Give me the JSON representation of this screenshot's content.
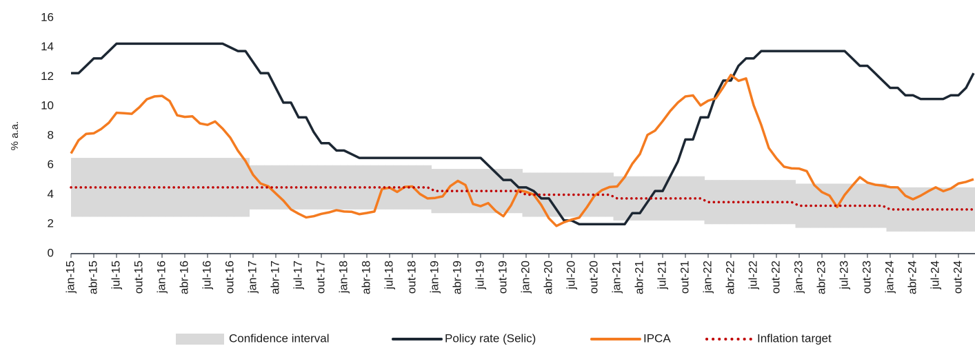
{
  "chart_data": {
    "type": "line",
    "y_label": "% a.a.",
    "categories": [
      "jan-15",
      null,
      null,
      "abr-15",
      null,
      null,
      "jul-15",
      null,
      null,
      "out-15",
      null,
      null,
      "jan-16",
      null,
      null,
      "abr-16",
      null,
      null,
      "jul-16",
      null,
      null,
      "out-16",
      null,
      null,
      "jan-17",
      null,
      null,
      "abr-17",
      null,
      null,
      "jul-17",
      null,
      null,
      "out-17",
      null,
      null,
      "jan-18",
      null,
      null,
      "abr-18",
      null,
      null,
      "jul-18",
      null,
      null,
      "out-18",
      null,
      null,
      "jan-19",
      null,
      null,
      "abr-19",
      null,
      null,
      "jul-19",
      null,
      null,
      "out-19",
      null,
      null,
      "jan-20",
      null,
      null,
      "abr-20",
      null,
      null,
      "jul-20",
      null,
      null,
      "out-20",
      null,
      null,
      "jan-21",
      null,
      null,
      "abr-21",
      null,
      null,
      "jul-21",
      null,
      null,
      "out-21",
      null,
      null,
      "jan-22",
      null,
      null,
      "abr-22",
      null,
      null,
      "jul-22",
      null,
      null,
      "out-22",
      null,
      null,
      "jan-23",
      null,
      null,
      "abr-23",
      null,
      null,
      "jul-23",
      null,
      null,
      "out-23",
      null,
      null,
      "jan-24",
      null,
      null,
      "abr-24",
      null,
      null,
      "jul-24",
      null,
      null,
      "out-24",
      null,
      null
    ],
    "band": {
      "name": "Confidence interval",
      "color": "#d9d9d9",
      "lower": [
        2.5,
        2.5,
        2.5,
        2.5,
        2.5,
        2.5,
        2.5,
        2.5,
        2.5,
        2.5,
        2.5,
        2.5,
        2.5,
        2.5,
        2.5,
        2.5,
        2.5,
        2.5,
        2.5,
        2.5,
        2.5,
        2.5,
        2.5,
        2.5,
        3,
        3,
        3,
        3,
        3,
        3,
        3,
        3,
        3,
        3,
        3,
        3,
        3,
        3,
        3,
        3,
        3,
        3,
        3,
        3,
        3,
        3,
        3,
        3,
        2.75,
        2.75,
        2.75,
        2.75,
        2.75,
        2.75,
        2.75,
        2.75,
        2.75,
        2.75,
        2.75,
        2.75,
        2.5,
        2.5,
        2.5,
        2.5,
        2.5,
        2.5,
        2.5,
        2.5,
        2.5,
        2.5,
        2.5,
        2.5,
        2.25,
        2.25,
        2.25,
        2.25,
        2.25,
        2.25,
        2.25,
        2.25,
        2.25,
        2.25,
        2.25,
        2.25,
        2,
        2,
        2,
        2,
        2,
        2,
        2,
        2,
        2,
        2,
        2,
        2,
        1.75,
        1.75,
        1.75,
        1.75,
        1.75,
        1.75,
        1.75,
        1.75,
        1.75,
        1.75,
        1.75,
        1.75,
        1.5,
        1.5,
        1.5,
        1.5,
        1.5,
        1.5,
        1.5,
        1.5,
        1.5,
        1.5,
        1.5,
        1.5
      ],
      "upper": [
        6.5,
        6.5,
        6.5,
        6.5,
        6.5,
        6.5,
        6.5,
        6.5,
        6.5,
        6.5,
        6.5,
        6.5,
        6.5,
        6.5,
        6.5,
        6.5,
        6.5,
        6.5,
        6.5,
        6.5,
        6.5,
        6.5,
        6.5,
        6.5,
        6,
        6,
        6,
        6,
        6,
        6,
        6,
        6,
        6,
        6,
        6,
        6,
        6,
        6,
        6,
        6,
        6,
        6,
        6,
        6,
        6,
        6,
        6,
        6,
        5.75,
        5.75,
        5.75,
        5.75,
        5.75,
        5.75,
        5.75,
        5.75,
        5.75,
        5.75,
        5.75,
        5.75,
        5.5,
        5.5,
        5.5,
        5.5,
        5.5,
        5.5,
        5.5,
        5.5,
        5.5,
        5.5,
        5.5,
        5.5,
        5.25,
        5.25,
        5.25,
        5.25,
        5.25,
        5.25,
        5.25,
        5.25,
        5.25,
        5.25,
        5.25,
        5.25,
        5,
        5,
        5,
        5,
        5,
        5,
        5,
        5,
        5,
        5,
        5,
        5,
        4.75,
        4.75,
        4.75,
        4.75,
        4.75,
        4.75,
        4.75,
        4.75,
        4.75,
        4.75,
        4.75,
        4.75,
        4.5,
        4.5,
        4.5,
        4.5,
        4.5,
        4.5,
        4.5,
        4.5,
        4.5,
        4.5,
        4.5,
        4.5
      ]
    },
    "series": [
      {
        "name": "Policy rate (Selic)",
        "color": "#1c2733",
        "dash": "solid",
        "values": [
          12.25,
          12.25,
          12.75,
          13.25,
          13.25,
          13.75,
          14.25,
          14.25,
          14.25,
          14.25,
          14.25,
          14.25,
          14.25,
          14.25,
          14.25,
          14.25,
          14.25,
          14.25,
          14.25,
          14.25,
          14.25,
          14,
          13.75,
          13.75,
          13,
          12.25,
          12.25,
          11.25,
          10.25,
          10.25,
          9.25,
          9.25,
          8.25,
          7.5,
          7.5,
          7,
          7,
          6.75,
          6.5,
          6.5,
          6.5,
          6.5,
          6.5,
          6.5,
          6.5,
          6.5,
          6.5,
          6.5,
          6.5,
          6.5,
          6.5,
          6.5,
          6.5,
          6.5,
          6.5,
          6,
          5.5,
          5,
          5,
          4.5,
          4.5,
          4.25,
          3.75,
          3.75,
          3,
          2.25,
          2.25,
          2,
          2,
          2,
          2,
          2,
          2,
          2,
          2.75,
          2.75,
          3.5,
          4.25,
          4.25,
          5.25,
          6.25,
          7.75,
          7.75,
          9.25,
          9.25,
          10.75,
          11.75,
          11.75,
          12.75,
          13.25,
          13.25,
          13.75,
          13.75,
          13.75,
          13.75,
          13.75,
          13.75,
          13.75,
          13.75,
          13.75,
          13.75,
          13.75,
          13.75,
          13.25,
          12.75,
          12.75,
          12.25,
          11.75,
          11.25,
          11.25,
          10.75,
          10.75,
          10.5,
          10.5,
          10.5,
          10.5,
          10.75,
          10.75,
          11.25,
          12.25
        ]
      },
      {
        "name": "IPCA",
        "color": "#f47b20",
        "dash": "solid",
        "values": [
          6.8,
          7.7,
          8.13,
          8.17,
          8.47,
          8.89,
          9.56,
          9.53,
          9.49,
          9.93,
          10.48,
          10.67,
          10.71,
          10.36,
          9.39,
          9.28,
          9.32,
          8.84,
          8.74,
          8.97,
          8.48,
          7.87,
          6.99,
          6.29,
          5.35,
          4.76,
          4.57,
          4.08,
          3.6,
          3,
          2.71,
          2.46,
          2.54,
          2.7,
          2.8,
          2.95,
          2.86,
          2.84,
          2.68,
          2.76,
          2.86,
          4.39,
          4.48,
          4.19,
          4.53,
          4.56,
          4.05,
          3.75,
          3.78,
          3.89,
          4.58,
          4.94,
          4.66,
          3.37,
          3.22,
          3.43,
          2.89,
          2.54,
          3.27,
          4.31,
          4.19,
          4.01,
          3.3,
          2.4,
          1.88,
          2.13,
          2.31,
          2.44,
          3.14,
          3.92,
          4.31,
          4.52,
          4.56,
          5.2,
          6.1,
          6.76,
          8.06,
          8.35,
          8.99,
          9.68,
          10.25,
          10.67,
          10.74,
          10.06,
          10.38,
          10.54,
          11.3,
          12.13,
          11.73,
          11.89,
          10.07,
          8.73,
          7.17,
          6.47,
          5.9,
          5.79,
          5.77,
          5.6,
          4.65,
          4.18,
          3.94,
          3.16,
          3.99,
          4.61,
          5.19,
          4.82,
          4.68,
          4.62,
          4.51,
          4.5,
          3.93,
          3.69,
          3.93,
          4.23,
          4.5,
          4.24,
          4.42,
          4.76,
          4.87,
          5.05
        ]
      },
      {
        "name": "Inflation target",
        "color": "#c00000",
        "dash": "dotted",
        "values": [
          4.5,
          4.5,
          4.5,
          4.5,
          4.5,
          4.5,
          4.5,
          4.5,
          4.5,
          4.5,
          4.5,
          4.5,
          4.5,
          4.5,
          4.5,
          4.5,
          4.5,
          4.5,
          4.5,
          4.5,
          4.5,
          4.5,
          4.5,
          4.5,
          4.5,
          4.5,
          4.5,
          4.5,
          4.5,
          4.5,
          4.5,
          4.5,
          4.5,
          4.5,
          4.5,
          4.5,
          4.5,
          4.5,
          4.5,
          4.5,
          4.5,
          4.5,
          4.5,
          4.5,
          4.5,
          4.5,
          4.5,
          4.5,
          4.25,
          4.25,
          4.25,
          4.25,
          4.25,
          4.25,
          4.25,
          4.25,
          4.25,
          4.25,
          4.25,
          4.25,
          4,
          4,
          4,
          4,
          4,
          4,
          4,
          4,
          4,
          4,
          4,
          4,
          3.75,
          3.75,
          3.75,
          3.75,
          3.75,
          3.75,
          3.75,
          3.75,
          3.75,
          3.75,
          3.75,
          3.75,
          3.5,
          3.5,
          3.5,
          3.5,
          3.5,
          3.5,
          3.5,
          3.5,
          3.5,
          3.5,
          3.5,
          3.5,
          3.25,
          3.25,
          3.25,
          3.25,
          3.25,
          3.25,
          3.25,
          3.25,
          3.25,
          3.25,
          3.25,
          3.25,
          3,
          3,
          3,
          3,
          3,
          3,
          3,
          3,
          3,
          3,
          3,
          3
        ]
      }
    ],
    "ylim": [
      0,
      16
    ],
    "yticks": [
      0,
      2,
      4,
      6,
      8,
      10,
      12,
      14,
      16
    ],
    "grid": false
  }
}
